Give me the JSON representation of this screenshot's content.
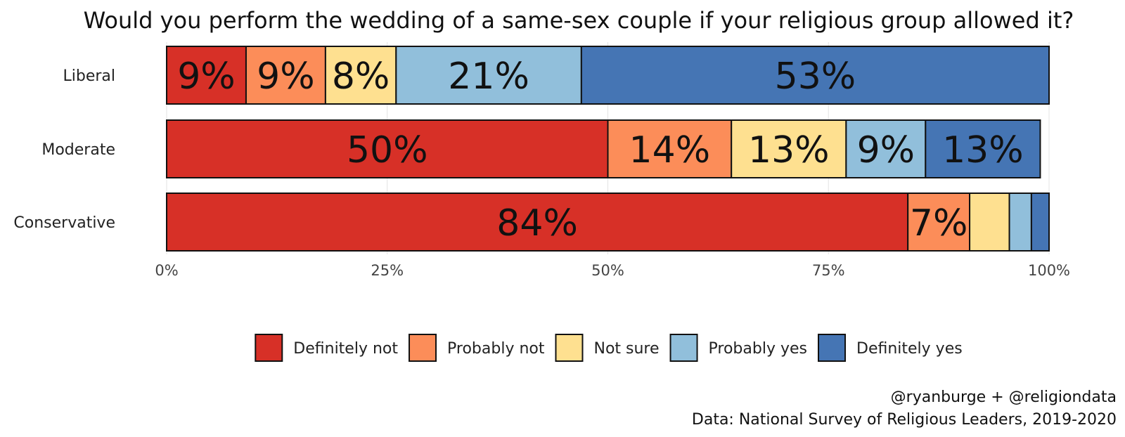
{
  "chart_data": {
    "type": "bar",
    "orientation": "horizontal",
    "stacked": true,
    "title": "Would you perform the wedding of a same-sex couple if your religious group allowed it?",
    "categories": [
      "Liberal",
      "Moderate",
      "Conservative"
    ],
    "series": [
      {
        "name": "Definitely not",
        "color": "#d73027",
        "values": [
          9,
          50,
          84
        ],
        "labels": [
          "9%",
          "50%",
          "84%"
        ]
      },
      {
        "name": "Probably not",
        "color": "#fc8d59",
        "values": [
          9,
          14,
          7
        ],
        "labels": [
          "9%",
          "14%",
          "7%"
        ]
      },
      {
        "name": "Not sure",
        "color": "#fee090",
        "values": [
          8,
          13,
          4.5
        ],
        "labels": [
          "8%",
          "13%",
          ""
        ]
      },
      {
        "name": "Probably yes",
        "color": "#91bfdb",
        "values": [
          21,
          9,
          2.5
        ],
        "labels": [
          "21%",
          "9%",
          ""
        ]
      },
      {
        "name": "Definitely yes",
        "color": "#4575b4",
        "values": [
          53,
          13,
          2
        ],
        "labels": [
          "53%",
          "13%",
          ""
        ]
      }
    ],
    "xlim": [
      0,
      100
    ],
    "xticks": [
      "0%",
      "25%",
      "50%",
      "75%",
      "100%"
    ],
    "xlabel": "",
    "ylabel": "",
    "grid": true,
    "legend_position": "bottom",
    "caption": [
      "@ryanburge + @religiondata",
      "Data: National Survey of Religious Leaders, 2019-2020"
    ]
  }
}
